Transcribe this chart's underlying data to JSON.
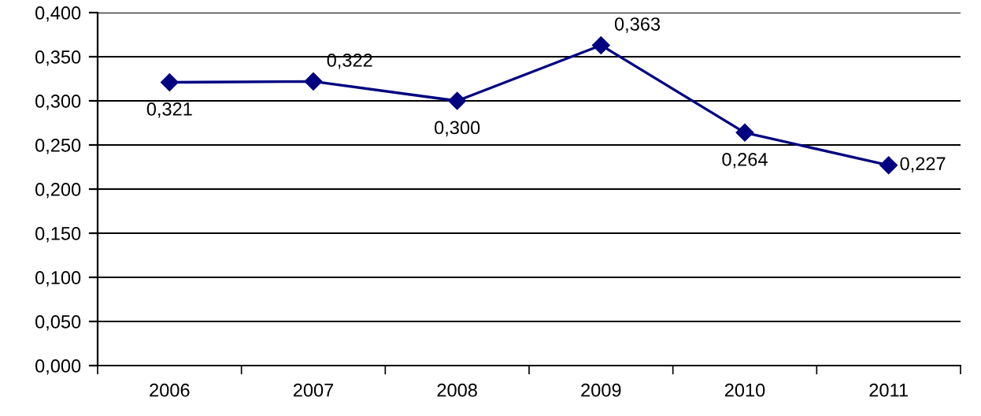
{
  "chart_data": {
    "type": "line",
    "categories": [
      "2006",
      "2007",
      "2008",
      "2009",
      "2010",
      "2011"
    ],
    "series": [
      {
        "color": "#000080",
        "values": [
          0.321,
          0.322,
          0.3,
          0.363,
          0.264,
          0.227
        ],
        "value_labels": [
          "0,321",
          "0,322",
          "0,300",
          "0,363",
          "0,264",
          "0,227"
        ]
      }
    ],
    "ylim": [
      0,
      0.4
    ],
    "yticks": [
      {
        "value": 0,
        "label": "0,000"
      },
      {
        "value": 0.05,
        "label": "0,050"
      },
      {
        "value": 0.1,
        "label": "0,100"
      },
      {
        "value": 0.15,
        "label": "0,150"
      },
      {
        "value": 0.2,
        "label": "0,200"
      },
      {
        "value": 0.25,
        "label": "0,250"
      },
      {
        "value": 0.3,
        "label": "0,300"
      },
      {
        "value": 0.35,
        "label": "0,350"
      },
      {
        "value": 0.4,
        "label": "0,400"
      }
    ],
    "grid": "y",
    "marker": "diamond",
    "line_style": "solid",
    "legend": false
  }
}
